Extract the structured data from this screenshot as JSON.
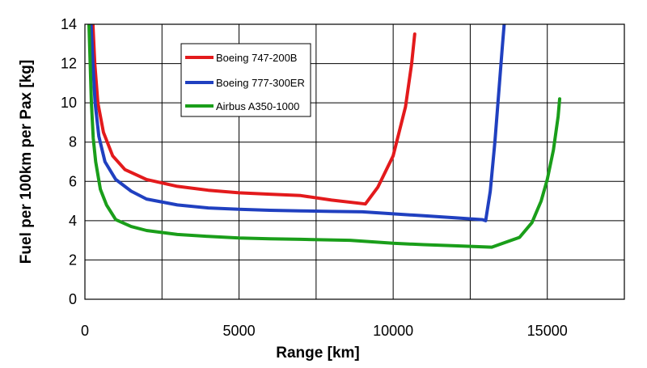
{
  "chart_data": {
    "type": "line",
    "xlabel": "Range [km]",
    "ylabel": "Fuel per 100km per Pax [kg]",
    "xlim": [
      0,
      17500
    ],
    "ylim": [
      0,
      14
    ],
    "x_ticks": [
      0,
      5000,
      10000,
      15000
    ],
    "x_tick_labels": [
      "0",
      "5000",
      "10000",
      "15000"
    ],
    "y_ticks": [
      0,
      2,
      4,
      6,
      8,
      10,
      12,
      14
    ],
    "y_tick_labels": [
      "0",
      "2",
      "4",
      "6",
      "8",
      "10",
      "12",
      "14"
    ],
    "grid": true,
    "legend_position": "top-left, inside plot",
    "series": [
      {
        "name": "Boeing 747-200B",
        "color": "#e31a1c",
        "points": [
          [
            260,
            14.0
          ],
          [
            320,
            12.0
          ],
          [
            420,
            10.0
          ],
          [
            600,
            8.5
          ],
          [
            900,
            7.3
          ],
          [
            1300,
            6.6
          ],
          [
            2000,
            6.1
          ],
          [
            3000,
            5.75
          ],
          [
            4000,
            5.55
          ],
          [
            5000,
            5.42
          ],
          [
            6000,
            5.35
          ],
          [
            7000,
            5.28
          ],
          [
            8000,
            5.05
          ],
          [
            9100,
            4.85
          ],
          [
            9500,
            5.7
          ],
          [
            10000,
            7.3
          ],
          [
            10400,
            9.8
          ],
          [
            10600,
            12.0
          ],
          [
            10700,
            13.5
          ]
        ]
      },
      {
        "name": "Boeing 777-300ER",
        "color": "#2040c0",
        "points": [
          [
            200,
            14.0
          ],
          [
            260,
            12.0
          ],
          [
            330,
            10.0
          ],
          [
            450,
            8.3
          ],
          [
            650,
            7.0
          ],
          [
            1000,
            6.1
          ],
          [
            1500,
            5.5
          ],
          [
            2000,
            5.1
          ],
          [
            3000,
            4.8
          ],
          [
            4000,
            4.65
          ],
          [
            5000,
            4.58
          ],
          [
            6000,
            4.53
          ],
          [
            7000,
            4.5
          ],
          [
            8000,
            4.47
          ],
          [
            9000,
            4.45
          ],
          [
            10000,
            4.35
          ],
          [
            11000,
            4.25
          ],
          [
            12000,
            4.15
          ],
          [
            12900,
            4.05
          ],
          [
            13000,
            4.0
          ],
          [
            13150,
            5.5
          ],
          [
            13300,
            8.0
          ],
          [
            13450,
            11.0
          ],
          [
            13550,
            13.0
          ],
          [
            13600,
            14.0
          ]
        ]
      },
      {
        "name": "Airbus A350-1000",
        "color": "#1a9e1a",
        "points": [
          [
            130,
            14.0
          ],
          [
            170,
            12.0
          ],
          [
            210,
            10.0
          ],
          [
            270,
            8.2
          ],
          [
            350,
            7.0
          ],
          [
            500,
            5.6
          ],
          [
            700,
            4.8
          ],
          [
            1000,
            4.05
          ],
          [
            1500,
            3.7
          ],
          [
            2000,
            3.5
          ],
          [
            3000,
            3.3
          ],
          [
            4000,
            3.2
          ],
          [
            5000,
            3.12
          ],
          [
            6000,
            3.08
          ],
          [
            7000,
            3.05
          ],
          [
            8600,
            3.0
          ],
          [
            10000,
            2.85
          ],
          [
            11000,
            2.78
          ],
          [
            12000,
            2.72
          ],
          [
            13200,
            2.65
          ],
          [
            14100,
            3.15
          ],
          [
            14500,
            3.9
          ],
          [
            14800,
            5.0
          ],
          [
            15000,
            6.1
          ],
          [
            15200,
            7.6
          ],
          [
            15350,
            9.3
          ],
          [
            15400,
            10.2
          ]
        ]
      }
    ]
  }
}
